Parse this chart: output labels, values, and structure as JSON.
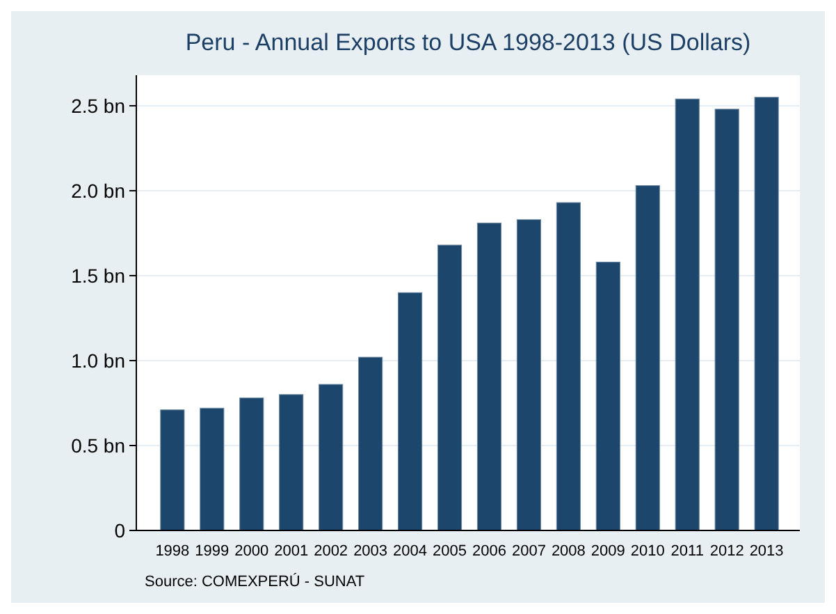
{
  "chart_data": {
    "type": "bar",
    "title": "Peru - Annual Exports to USA 1998-2013 (US Dollars)",
    "categories": [
      "1998",
      "1999",
      "2000",
      "2001",
      "2002",
      "2003",
      "2004",
      "2005",
      "2006",
      "2007",
      "2008",
      "2009",
      "2010",
      "2011",
      "2012",
      "2013"
    ],
    "values": [
      0.71,
      0.72,
      0.78,
      0.8,
      0.86,
      1.02,
      1.4,
      1.68,
      1.81,
      1.83,
      1.93,
      1.58,
      2.03,
      2.54,
      2.48,
      2.55
    ],
    "color": "#1c466c",
    "ylim": [
      0,
      2.68
    ],
    "yticks": [
      0,
      {
        "value": 0.5,
        "label": "0.5 bn"
      },
      {
        "value": 1,
        "label": "1.0 bn"
      },
      {
        "value": 1.5,
        "label": "1.5 bn"
      },
      {
        "value": 2,
        "label": "2.0 bn"
      },
      {
        "value": 2.5,
        "label": "2.5 bn"
      }
    ],
    "grid": "y",
    "annotations": [
      "Source: COMEXPERÚ - SUNAT"
    ]
  }
}
